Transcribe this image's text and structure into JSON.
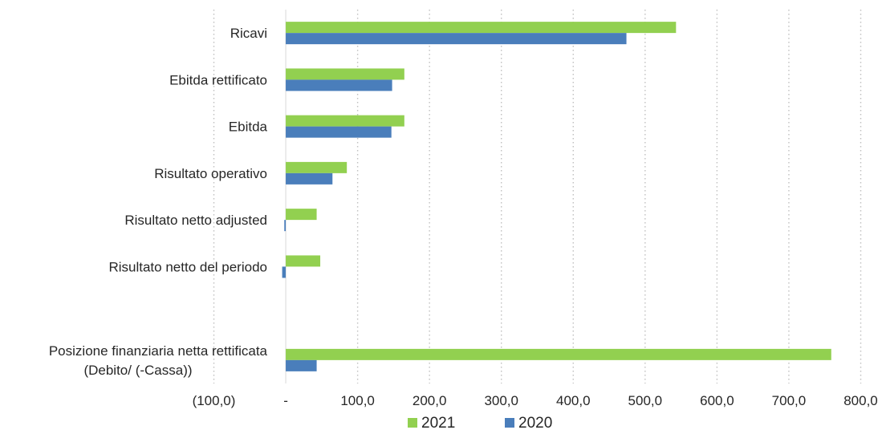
{
  "chart_data": {
    "type": "bar",
    "orientation": "horizontal",
    "title": "",
    "xlabel": "",
    "ylabel": "",
    "xlim": [
      -100,
      800
    ],
    "x_ticks": [
      {
        "value": -100,
        "label": "(100,0)"
      },
      {
        "value": 0,
        "label": "-"
      },
      {
        "value": 100,
        "label": "100,0"
      },
      {
        "value": 200,
        "label": "200,0"
      },
      {
        "value": 300,
        "label": "300,0"
      },
      {
        "value": 400,
        "label": "400,0"
      },
      {
        "value": 500,
        "label": "500,0"
      },
      {
        "value": 600,
        "label": "600,0"
      },
      {
        "value": 700,
        "label": "700,0"
      },
      {
        "value": 800,
        "label": "800,0"
      }
    ],
    "grid": "vertical-dotted",
    "legend_position": "bottom",
    "categories": [
      {
        "lines": [
          "Ricavi"
        ]
      },
      {
        "lines": [
          "Ebitda rettificato"
        ]
      },
      {
        "lines": [
          "Ebitda"
        ]
      },
      {
        "lines": [
          "Risultato operativo"
        ]
      },
      {
        "lines": [
          "Risultato netto adjusted"
        ]
      },
      {
        "lines": [
          "Risultato netto del periodo"
        ]
      },
      {
        "lines": [
          ""
        ]
      },
      {
        "lines": [
          "Posizione finanziaria netta rettificata",
          "(Debito/ (-Cassa))"
        ]
      }
    ],
    "series": [
      {
        "name": "2021",
        "color": "#92d050",
        "values": [
          543,
          165,
          165,
          85,
          43,
          48,
          null,
          759
        ]
      },
      {
        "name": "2020",
        "color": "#4a7ebb",
        "values": [
          474,
          148,
          147,
          65,
          -2,
          -5,
          null,
          43
        ]
      }
    ]
  }
}
